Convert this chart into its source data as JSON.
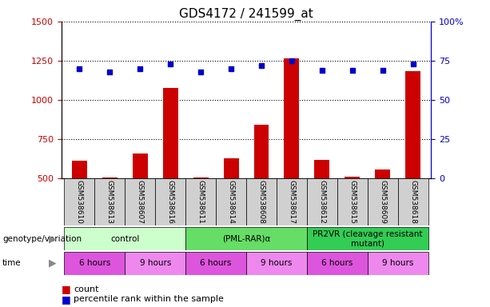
{
  "title": "GDS4172 / 241599_at",
  "samples": [
    "GSM538610",
    "GSM538613",
    "GSM538607",
    "GSM538616",
    "GSM538611",
    "GSM538614",
    "GSM538608",
    "GSM538617",
    "GSM538612",
    "GSM538615",
    "GSM538609",
    "GSM538618"
  ],
  "counts": [
    610,
    502,
    655,
    1075,
    502,
    625,
    840,
    1265,
    615,
    507,
    555,
    1185
  ],
  "percentiles": [
    70,
    68,
    70,
    73,
    68,
    70,
    72,
    75,
    69,
    69,
    69,
    73
  ],
  "bar_color": "#cc0000",
  "dot_color": "#0000cc",
  "ylim_left": [
    500,
    1500
  ],
  "ylim_right": [
    0,
    100
  ],
  "yticks_left": [
    500,
    750,
    1000,
    1250,
    1500
  ],
  "yticks_right": [
    0,
    25,
    50,
    75,
    100
  ],
  "genotype_groups": [
    {
      "label": "control",
      "start": 0,
      "end": 4,
      "color": "#ccffcc"
    },
    {
      "label": "(PML-RAR)α",
      "start": 4,
      "end": 8,
      "color": "#66dd66"
    },
    {
      "label": "PR2VR (cleavage resistant\nmutant)",
      "start": 8,
      "end": 12,
      "color": "#33cc55"
    }
  ],
  "time_groups": [
    {
      "label": "6 hours",
      "start": 0,
      "end": 2,
      "color": "#dd55dd"
    },
    {
      "label": "9 hours",
      "start": 2,
      "end": 4,
      "color": "#ee88ee"
    },
    {
      "label": "6 hours",
      "start": 4,
      "end": 6,
      "color": "#dd55dd"
    },
    {
      "label": "9 hours",
      "start": 6,
      "end": 8,
      "color": "#ee88ee"
    },
    {
      "label": "6 hours",
      "start": 8,
      "end": 10,
      "color": "#dd55dd"
    },
    {
      "label": "9 hours",
      "start": 10,
      "end": 12,
      "color": "#ee88ee"
    }
  ],
  "legend_count_label": "count",
  "legend_pct_label": "percentile rank within the sample",
  "xlabel_genotype": "genotype/variation",
  "xlabel_time": "time",
  "tick_label_color": "#cc0000",
  "right_axis_color": "#0000cc",
  "background_color": "#ffffff",
  "grid_color": "#000000",
  "cell_bg_color": "#d0d0d0"
}
